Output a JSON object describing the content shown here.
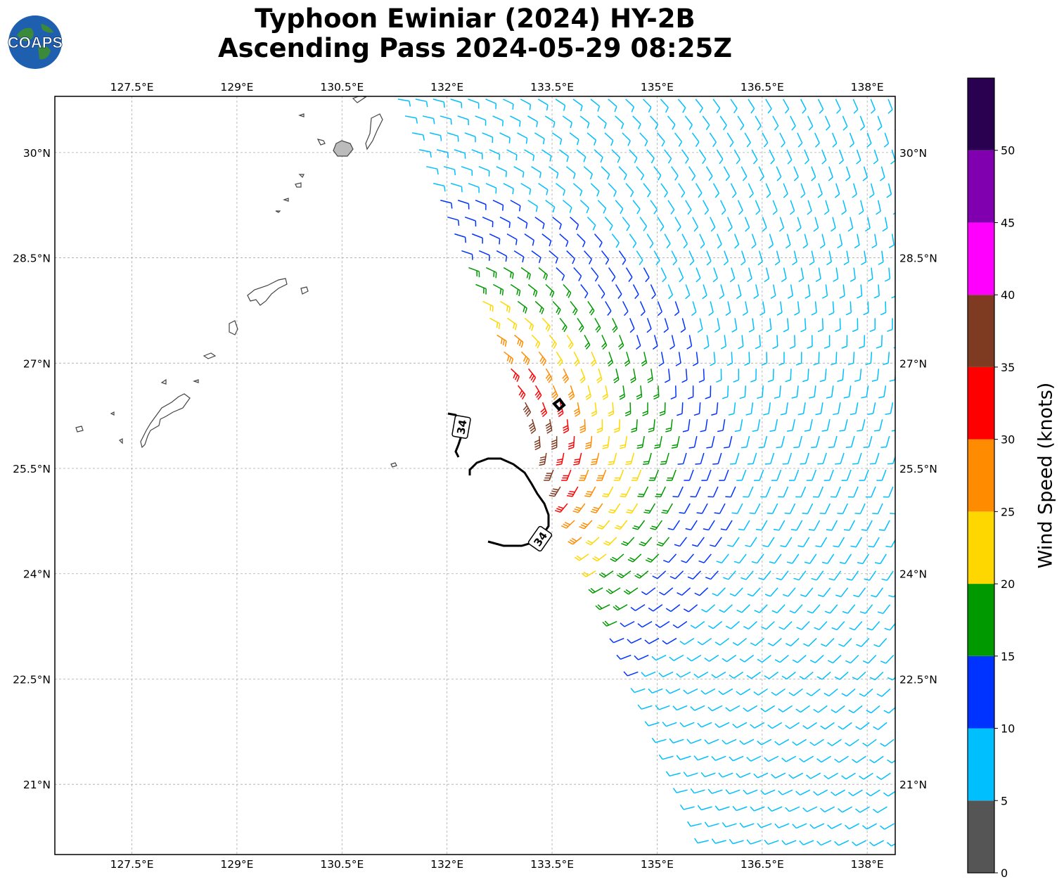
{
  "header": {
    "title_line1": "Typhoon Ewiniar (2024) HY-2B",
    "title_line2": "Ascending Pass 2024-05-29 08:25Z",
    "logo_text": "COAPS"
  },
  "map": {
    "lon_range": [
      126.4,
      138.4
    ],
    "lat_range": [
      20.0,
      30.8
    ],
    "lon_ticks": [
      "127.5°E",
      "129°E",
      "130.5°E",
      "132°E",
      "133.5°E",
      "135°E",
      "136.5°E",
      "138°E"
    ],
    "lon_tick_values": [
      127.5,
      129,
      130.5,
      132,
      133.5,
      135,
      136.5,
      138
    ],
    "lat_ticks": [
      "30°N",
      "28.5°N",
      "27°N",
      "25.5°N",
      "24°N",
      "22.5°N",
      "21°N"
    ],
    "lat_tick_values": [
      30,
      28.5,
      27,
      25.5,
      24,
      22.5,
      21
    ],
    "contour_label": "34",
    "contour_labels": [
      "34",
      "34"
    ],
    "storm_center": {
      "lon": 132.3,
      "lat": 25.5
    }
  },
  "colorbar": {
    "label": "Wind Speed (knots)",
    "ticks": [
      "0",
      "5",
      "10",
      "15",
      "20",
      "25",
      "30",
      "35",
      "40",
      "45",
      "50"
    ],
    "bins": [
      {
        "range": [
          0,
          5
        ],
        "color": "#555555"
      },
      {
        "range": [
          5,
          10
        ],
        "color": "#00bfff"
      },
      {
        "range": [
          10,
          15
        ],
        "color": "#0033ff"
      },
      {
        "range": [
          15,
          20
        ],
        "color": "#009900"
      },
      {
        "range": [
          20,
          25
        ],
        "color": "#ffd700"
      },
      {
        "range": [
          25,
          30
        ],
        "color": "#ff8c00"
      },
      {
        "range": [
          30,
          35
        ],
        "color": "#ff0000"
      },
      {
        "range": [
          35,
          40
        ],
        "color": "#7f3a22"
      },
      {
        "range": [
          40,
          45
        ],
        "color": "#ff00ff"
      },
      {
        "range": [
          45,
          50
        ],
        "color": "#8000b0"
      },
      {
        "range": [
          50,
          55
        ],
        "color": "#2a0050"
      }
    ]
  }
}
